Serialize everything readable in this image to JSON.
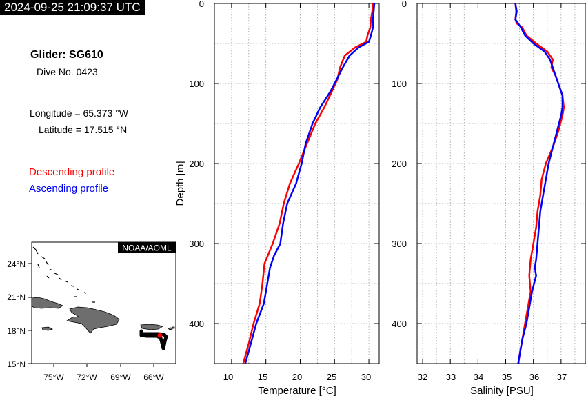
{
  "timestamp": "2024-09-25 21:09:37 UTC",
  "glider": {
    "name": "Glider: SG610",
    "dive": "Dive No. 0423",
    "longitude": "Longitude = 65.373 °W",
    "latitude": "Latitude = 17.515 °N"
  },
  "legend": {
    "descending": "Descending profile",
    "ascending": "Ascending profile",
    "descending_color": "#ff0000",
    "ascending_color": "#0000ff"
  },
  "map": {
    "credit": "NOAA/AOML",
    "lat_ticks": [
      "24°N",
      "21°N",
      "18°N",
      "15°N"
    ],
    "lon_ticks": [
      "75°W",
      "72°W",
      "69°W",
      "66°W"
    ],
    "glider_lon": -65.373,
    "glider_lat": 17.515
  },
  "chart_data": [
    {
      "type": "line",
      "xlabel": "Temperature [°C]",
      "ylabel": "Depth [m]",
      "xlim": [
        7.5,
        31.5
      ],
      "ylim": [
        450,
        0
      ],
      "xticks": [
        "10",
        "15",
        "20",
        "25",
        "30"
      ],
      "yticks": [
        "0",
        "100",
        "200",
        "300",
        "400"
      ],
      "grid": true,
      "series": [
        {
          "name": "Descending profile",
          "color": "#ff0000",
          "depth": [
            0,
            10,
            20,
            30,
            40,
            48,
            55,
            65,
            80,
            95,
            110,
            130,
            150,
            175,
            200,
            225,
            250,
            275,
            300,
            325,
            350,
            375,
            400,
            425,
            450
          ],
          "values": [
            30.6,
            30.5,
            30.3,
            30.2,
            29.8,
            29.6,
            28.0,
            26.5,
            25.8,
            25.4,
            24.6,
            23.5,
            22.2,
            21.0,
            19.8,
            18.5,
            17.6,
            17.0,
            16.0,
            14.8,
            14.5,
            14.1,
            13.2,
            12.5,
            11.7
          ]
        },
        {
          "name": "Ascending profile",
          "color": "#0000ff",
          "depth": [
            0,
            10,
            20,
            30,
            40,
            48,
            55,
            65,
            80,
            95,
            110,
            130,
            150,
            175,
            200,
            225,
            250,
            275,
            300,
            315,
            330,
            350,
            375,
            400,
            425,
            450
          ],
          "values": [
            30.8,
            30.7,
            30.6,
            30.6,
            30.3,
            30.0,
            28.5,
            27.2,
            26.2,
            25.3,
            24.4,
            22.9,
            21.8,
            20.8,
            20.2,
            19.4,
            18.1,
            17.5,
            17.1,
            16.2,
            15.6,
            15.2,
            14.7,
            13.6,
            12.8,
            12.0
          ]
        }
      ]
    },
    {
      "type": "line",
      "xlabel": "Salinity [PSU]",
      "ylabel": "",
      "xlim": [
        31.8,
        37.9
      ],
      "ylim": [
        450,
        0
      ],
      "xticks": [
        "32",
        "33",
        "34",
        "35",
        "36",
        "37"
      ],
      "yticks": [
        "0",
        "100",
        "200",
        "300",
        "400"
      ],
      "grid": true,
      "series": [
        {
          "name": "Descending profile",
          "color": "#ff0000",
          "depth": [
            0,
            10,
            20,
            25,
            30,
            40,
            50,
            60,
            70,
            80,
            90,
            100,
            115,
            130,
            140,
            160,
            180,
            200,
            220,
            240,
            260,
            280,
            300,
            320,
            340,
            360,
            380,
            400,
            420,
            450
          ],
          "values": [
            35.35,
            35.38,
            35.35,
            35.4,
            35.6,
            35.75,
            36.1,
            36.5,
            36.7,
            36.65,
            36.8,
            36.9,
            37.05,
            37.1,
            37.05,
            36.9,
            36.7,
            36.45,
            36.3,
            36.25,
            36.15,
            36.1,
            36.0,
            35.9,
            35.85,
            35.9,
            35.8,
            35.7,
            35.6,
            35.45
          ]
        },
        {
          "name": "Ascending profile",
          "color": "#0000ff",
          "depth": [
            0,
            10,
            20,
            25,
            30,
            40,
            50,
            60,
            70,
            80,
            90,
            100,
            115,
            130,
            140,
            160,
            180,
            200,
            220,
            240,
            260,
            280,
            300,
            320,
            330,
            340,
            360,
            380,
            400,
            420,
            450
          ],
          "values": [
            35.35,
            35.4,
            35.35,
            35.45,
            35.55,
            35.7,
            36.0,
            36.4,
            36.6,
            36.7,
            36.8,
            36.9,
            37.05,
            37.05,
            37.0,
            36.85,
            36.7,
            36.55,
            36.45,
            36.35,
            36.25,
            36.2,
            36.15,
            36.1,
            36.05,
            36.1,
            35.95,
            35.85,
            35.75,
            35.6,
            35.45
          ]
        }
      ]
    }
  ]
}
